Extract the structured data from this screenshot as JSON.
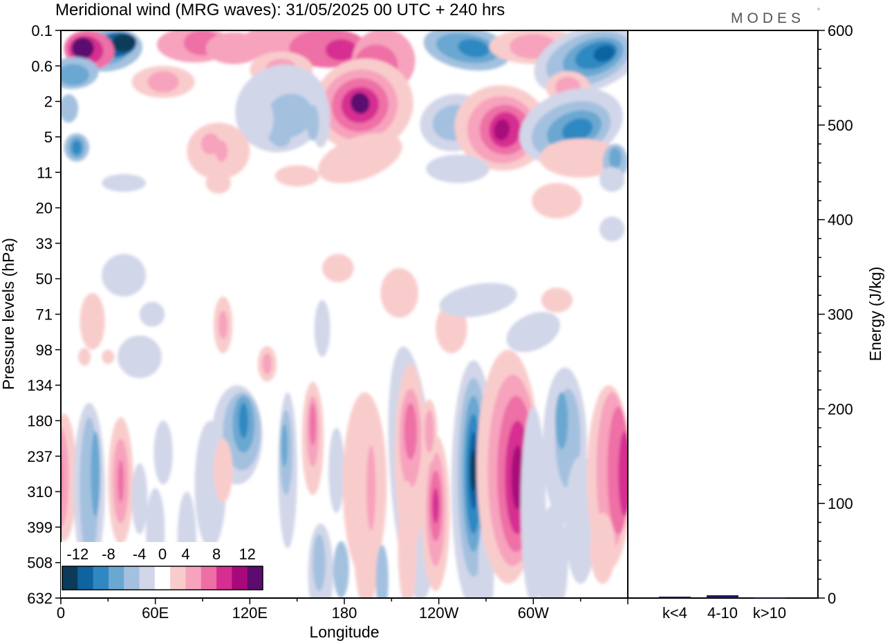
{
  "header": {
    "title": "Meridional wind (MRG waves):  31/05/2025  00 UTC  + 240 hrs",
    "brand": "MODES",
    "brand_mark": "°"
  },
  "chart_data": [
    {
      "type": "heatmap",
      "title": "Meridional wind (MRG waves):  31/05/2025  00 UTC  + 240 hrs",
      "xlabel": "Longitude",
      "ylabel": "Pressure levels (hPa)",
      "x_ticks": [
        "0",
        "60E",
        "120E",
        "180",
        "120W",
        "60W"
      ],
      "y_ticks": [
        "0.1",
        "0.6",
        "2",
        "5",
        "11",
        "20",
        "33",
        "50",
        "71",
        "98",
        "134",
        "180",
        "237",
        "310",
        "399",
        "508",
        "632"
      ],
      "colorbar": {
        "tick_labels": [
          "-12",
          "-8",
          "-4",
          "0",
          "4",
          "8",
          "12"
        ],
        "levels": [
          -14,
          -12,
          -10,
          -8,
          -6,
          -4,
          -2,
          2,
          4,
          6,
          8,
          10,
          12,
          14
        ],
        "colors": [
          "#0c3a5a",
          "#0f64a0",
          "#2f88c2",
          "#6aa7d1",
          "#a3c1df",
          "#d2d6e9",
          "#ffffff",
          "#f9cccc",
          "#f7a3bd",
          "#ee6fa6",
          "#d62f91",
          "#a8087b",
          "#5c0b6f"
        ]
      },
      "features": [
        {
          "kind": "negative",
          "lon": 37,
          "level": "0.2",
          "value": -14
        },
        {
          "kind": "positive",
          "lon": 16,
          "level": "0.3",
          "value": 12
        },
        {
          "kind": "positive",
          "lon": 190,
          "level": "2",
          "value": 14
        },
        {
          "kind": "positive",
          "lon": 280,
          "level": "5",
          "value": 12
        },
        {
          "kind": "negative",
          "lon": 322,
          "level": "5",
          "value": -10
        },
        {
          "kind": "negative",
          "lon": 340,
          "level": "0.3",
          "value": -12
        },
        {
          "kind": "negative",
          "lon": 262,
          "level": "237",
          "value": -14
        },
        {
          "kind": "positive",
          "lon": 298,
          "level": "237",
          "value": 10
        },
        {
          "kind": "positive",
          "lon": 357,
          "level": "237",
          "value": 10
        },
        {
          "kind": "negative",
          "lon": 116,
          "level": "180",
          "value": -8
        }
      ]
    },
    {
      "type": "bar",
      "categories": [
        "k<4",
        "4-10",
        "k>10"
      ],
      "values": [
        1.5,
        3,
        0.5
      ],
      "ylabel": "Energy (J/kg)",
      "ylim": [
        0,
        600
      ],
      "y_ticks": [
        "0",
        "100",
        "200",
        "300",
        "400",
        "500",
        "600"
      ],
      "bar_color": "#1a1a5e"
    }
  ]
}
